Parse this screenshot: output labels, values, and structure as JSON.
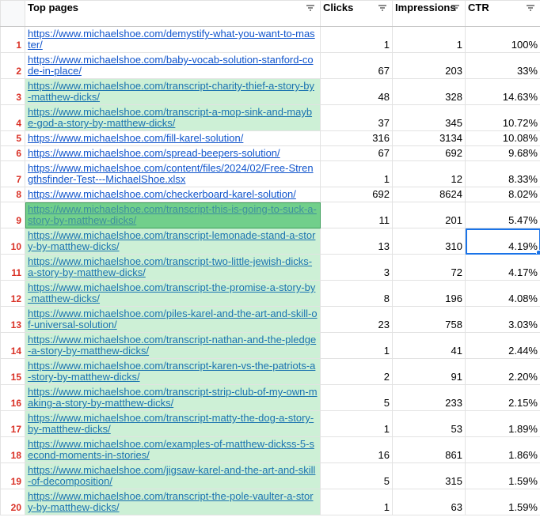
{
  "table": {
    "headers": [
      "Top pages",
      "Clicks",
      "Impressions",
      "CTR"
    ],
    "rows": [
      {
        "row": 1,
        "page": "https://www.michaelshoe.com/demystify-what-you-want-to-master/",
        "clicks": 1,
        "impressions": 1,
        "ctr": "100%"
      },
      {
        "row": 2,
        "page": "https://www.michaelshoe.com/baby-vocab-solution-stanford-code-in-place/",
        "clicks": 67,
        "impressions": 203,
        "ctr": "33%"
      },
      {
        "row": 3,
        "page": "https://www.michaelshoe.com/transcript-charity-thief-a-story-by-matthew-dicks/",
        "clicks": 48,
        "impressions": 328,
        "ctr": "14.63%"
      },
      {
        "row": 4,
        "page": "https://www.michaelshoe.com/transcript-a-mop-sink-and-maybe-god-a-story-by-matthew-dicks/",
        "clicks": 37,
        "impressions": 345,
        "ctr": "10.72%"
      },
      {
        "row": 5,
        "page": "https://www.michaelshoe.com/fill-karel-solution/",
        "clicks": 316,
        "impressions": 3134,
        "ctr": "10.08%"
      },
      {
        "row": 6,
        "page": "https://www.michaelshoe.com/spread-beepers-solution/",
        "clicks": 67,
        "impressions": 692,
        "ctr": "9.68%"
      },
      {
        "row": 7,
        "page": "https://www.michaelshoe.com/content/files/2024/02/Free-Strengthsfinder-Test---MichaelShoe.xlsx",
        "clicks": 1,
        "impressions": 12,
        "ctr": "8.33%"
      },
      {
        "row": 8,
        "page": "https://www.michaelshoe.com/checkerboard-karel-solution/",
        "clicks": 692,
        "impressions": 8624,
        "ctr": "8.02%"
      },
      {
        "row": 9,
        "page": "https://www.michaelshoe.com/transcript-this-is-going-to-suck-a-story-by-matthew-dicks/",
        "clicks": 11,
        "impressions": 201,
        "ctr": "5.47%"
      },
      {
        "row": 10,
        "page": "https://www.michaelshoe.com/transcript-lemonade-stand-a-story-by-matthew-dicks/",
        "clicks": 13,
        "impressions": 310,
        "ctr": "4.19%"
      },
      {
        "row": 11,
        "page": "https://www.michaelshoe.com/transcript-two-little-jewish-dicks-a-story-by-matthew-dicks/",
        "clicks": 3,
        "impressions": 72,
        "ctr": "4.17%"
      },
      {
        "row": 12,
        "page": "https://www.michaelshoe.com/transcript-the-promise-a-story-by-matthew-dicks/",
        "clicks": 8,
        "impressions": 196,
        "ctr": "4.08%"
      },
      {
        "row": 13,
        "page": "https://www.michaelshoe.com/piles-karel-and-the-art-and-skill-of-universal-solution/",
        "clicks": 23,
        "impressions": 758,
        "ctr": "3.03%"
      },
      {
        "row": 14,
        "page": "https://www.michaelshoe.com/transcript-nathan-and-the-pledge-a-story-by-matthew-dicks/",
        "clicks": 1,
        "impressions": 41,
        "ctr": "2.44%"
      },
      {
        "row": 15,
        "page": "https://www.michaelshoe.com/transcript-karen-vs-the-patriots-a-story-by-matthew-dicks/",
        "clicks": 2,
        "impressions": 91,
        "ctr": "2.20%"
      },
      {
        "row": 16,
        "page": "https://www.michaelshoe.com/transcript-strip-club-of-my-own-making-a-story-by-matthew-dicks/",
        "clicks": 5,
        "impressions": 233,
        "ctr": "2.15%"
      },
      {
        "row": 17,
        "page": "https://www.michaelshoe.com/transcript-matty-the-dog-a-story-by-matthew-dicks/",
        "clicks": 1,
        "impressions": 53,
        "ctr": "1.89%"
      },
      {
        "row": 18,
        "page": "https://www.michaelshoe.com/examples-of-matthew-dickss-5-second-moments-in-stories/",
        "clicks": 16,
        "impressions": 861,
        "ctr": "1.86%"
      },
      {
        "row": 19,
        "page": "https://www.michaelshoe.com/jigsaw-karel-and-the-art-and-skill-of-decomposition/",
        "clicks": 5,
        "impressions": 315,
        "ctr": "1.59%"
      },
      {
        "row": 20,
        "page": "https://www.michaelshoe.com/transcript-the-pole-vaulter-a-story-by-matthew-dicks/",
        "clicks": 1,
        "impressions": 63,
        "ctr": "1.59%"
      }
    ]
  }
}
